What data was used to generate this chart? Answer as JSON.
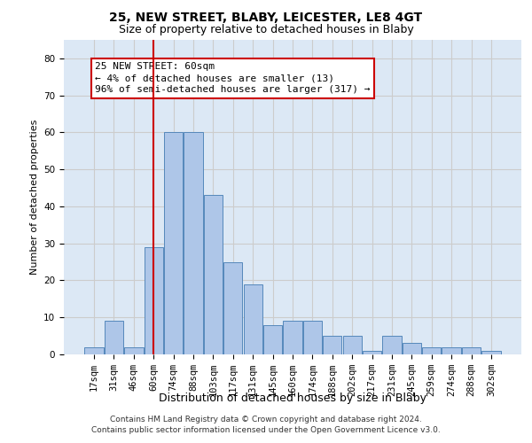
{
  "title1": "25, NEW STREET, BLABY, LEICESTER, LE8 4GT",
  "title2": "Size of property relative to detached houses in Blaby",
  "xlabel": "Distribution of detached houses by size in Blaby",
  "ylabel": "Number of detached properties",
  "categories": [
    "17sqm",
    "31sqm",
    "46sqm",
    "60sqm",
    "74sqm",
    "88sqm",
    "103sqm",
    "117sqm",
    "131sqm",
    "145sqm",
    "160sqm",
    "174sqm",
    "188sqm",
    "202sqm",
    "217sqm",
    "231sqm",
    "245sqm",
    "259sqm",
    "274sqm",
    "288sqm",
    "302sqm"
  ],
  "values": [
    2,
    9,
    2,
    29,
    60,
    60,
    43,
    25,
    19,
    8,
    9,
    9,
    5,
    5,
    1,
    5,
    3,
    2,
    2,
    2,
    1
  ],
  "bar_color": "#aec6e8",
  "bar_edge_color": "#5588bb",
  "highlight_x": "60sqm",
  "highlight_line_color": "#cc0000",
  "annotation_text": "25 NEW STREET: 60sqm\n← 4% of detached houses are smaller (13)\n96% of semi-detached houses are larger (317) →",
  "annotation_box_color": "#ffffff",
  "annotation_box_edge_color": "#cc0000",
  "ylim": [
    0,
    85
  ],
  "yticks": [
    0,
    10,
    20,
    30,
    40,
    50,
    60,
    70,
    80
  ],
  "grid_color": "#cccccc",
  "bg_color": "#dce8f5",
  "footnote": "Contains HM Land Registry data © Crown copyright and database right 2024.\nContains public sector information licensed under the Open Government Licence v3.0.",
  "title1_fontsize": 10,
  "title2_fontsize": 9,
  "xlabel_fontsize": 9,
  "ylabel_fontsize": 8,
  "tick_fontsize": 7.5,
  "annotation_fontsize": 8,
  "footnote_fontsize": 6.5
}
